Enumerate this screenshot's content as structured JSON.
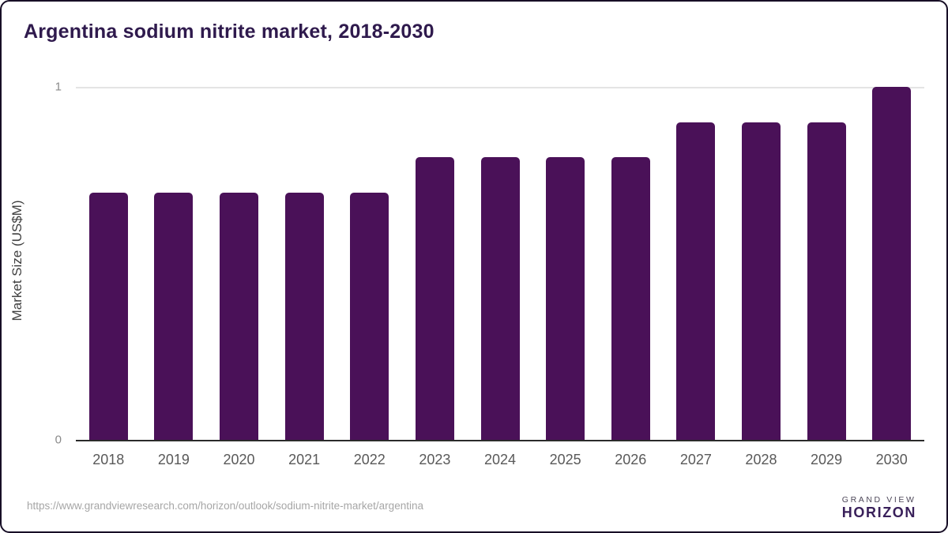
{
  "title": "Argentina sodium nitrite market, 2018-2030",
  "chart_data": {
    "type": "bar",
    "categories": [
      "2018",
      "2019",
      "2020",
      "2021",
      "2022",
      "2023",
      "2024",
      "2025",
      "2026",
      "2027",
      "2028",
      "2029",
      "2030"
    ],
    "values": [
      0.7,
      0.7,
      0.7,
      0.7,
      0.7,
      0.8,
      0.8,
      0.8,
      0.8,
      0.9,
      0.9,
      0.9,
      1.0
    ],
    "title": "Argentina sodium nitrite market, 2018-2030",
    "xlabel": "",
    "ylabel": "Market Size (US$M)",
    "ylim": [
      0,
      1
    ],
    "yticks": [
      1,
      0
    ],
    "legend": "none",
    "grid": "single horizontal gridline at y=1",
    "bar_color": "#4a1158",
    "gridline_color": "#e4e4e4",
    "axis_line_color": "#2b2b2b",
    "tick_label_color": "#8a8a8a"
  },
  "footer": {
    "source_url": "https://www.grandviewresearch.com/horizon/outlook/sodium-nitrite-market/argentina",
    "logo": {
      "icon": "horizon-sunrise-icon",
      "line1": "GRAND VIEW",
      "line2": "HORIZON",
      "icon_top_color": "#2c1b42",
      "icon_bottom_color": "#5bc6f0"
    }
  }
}
